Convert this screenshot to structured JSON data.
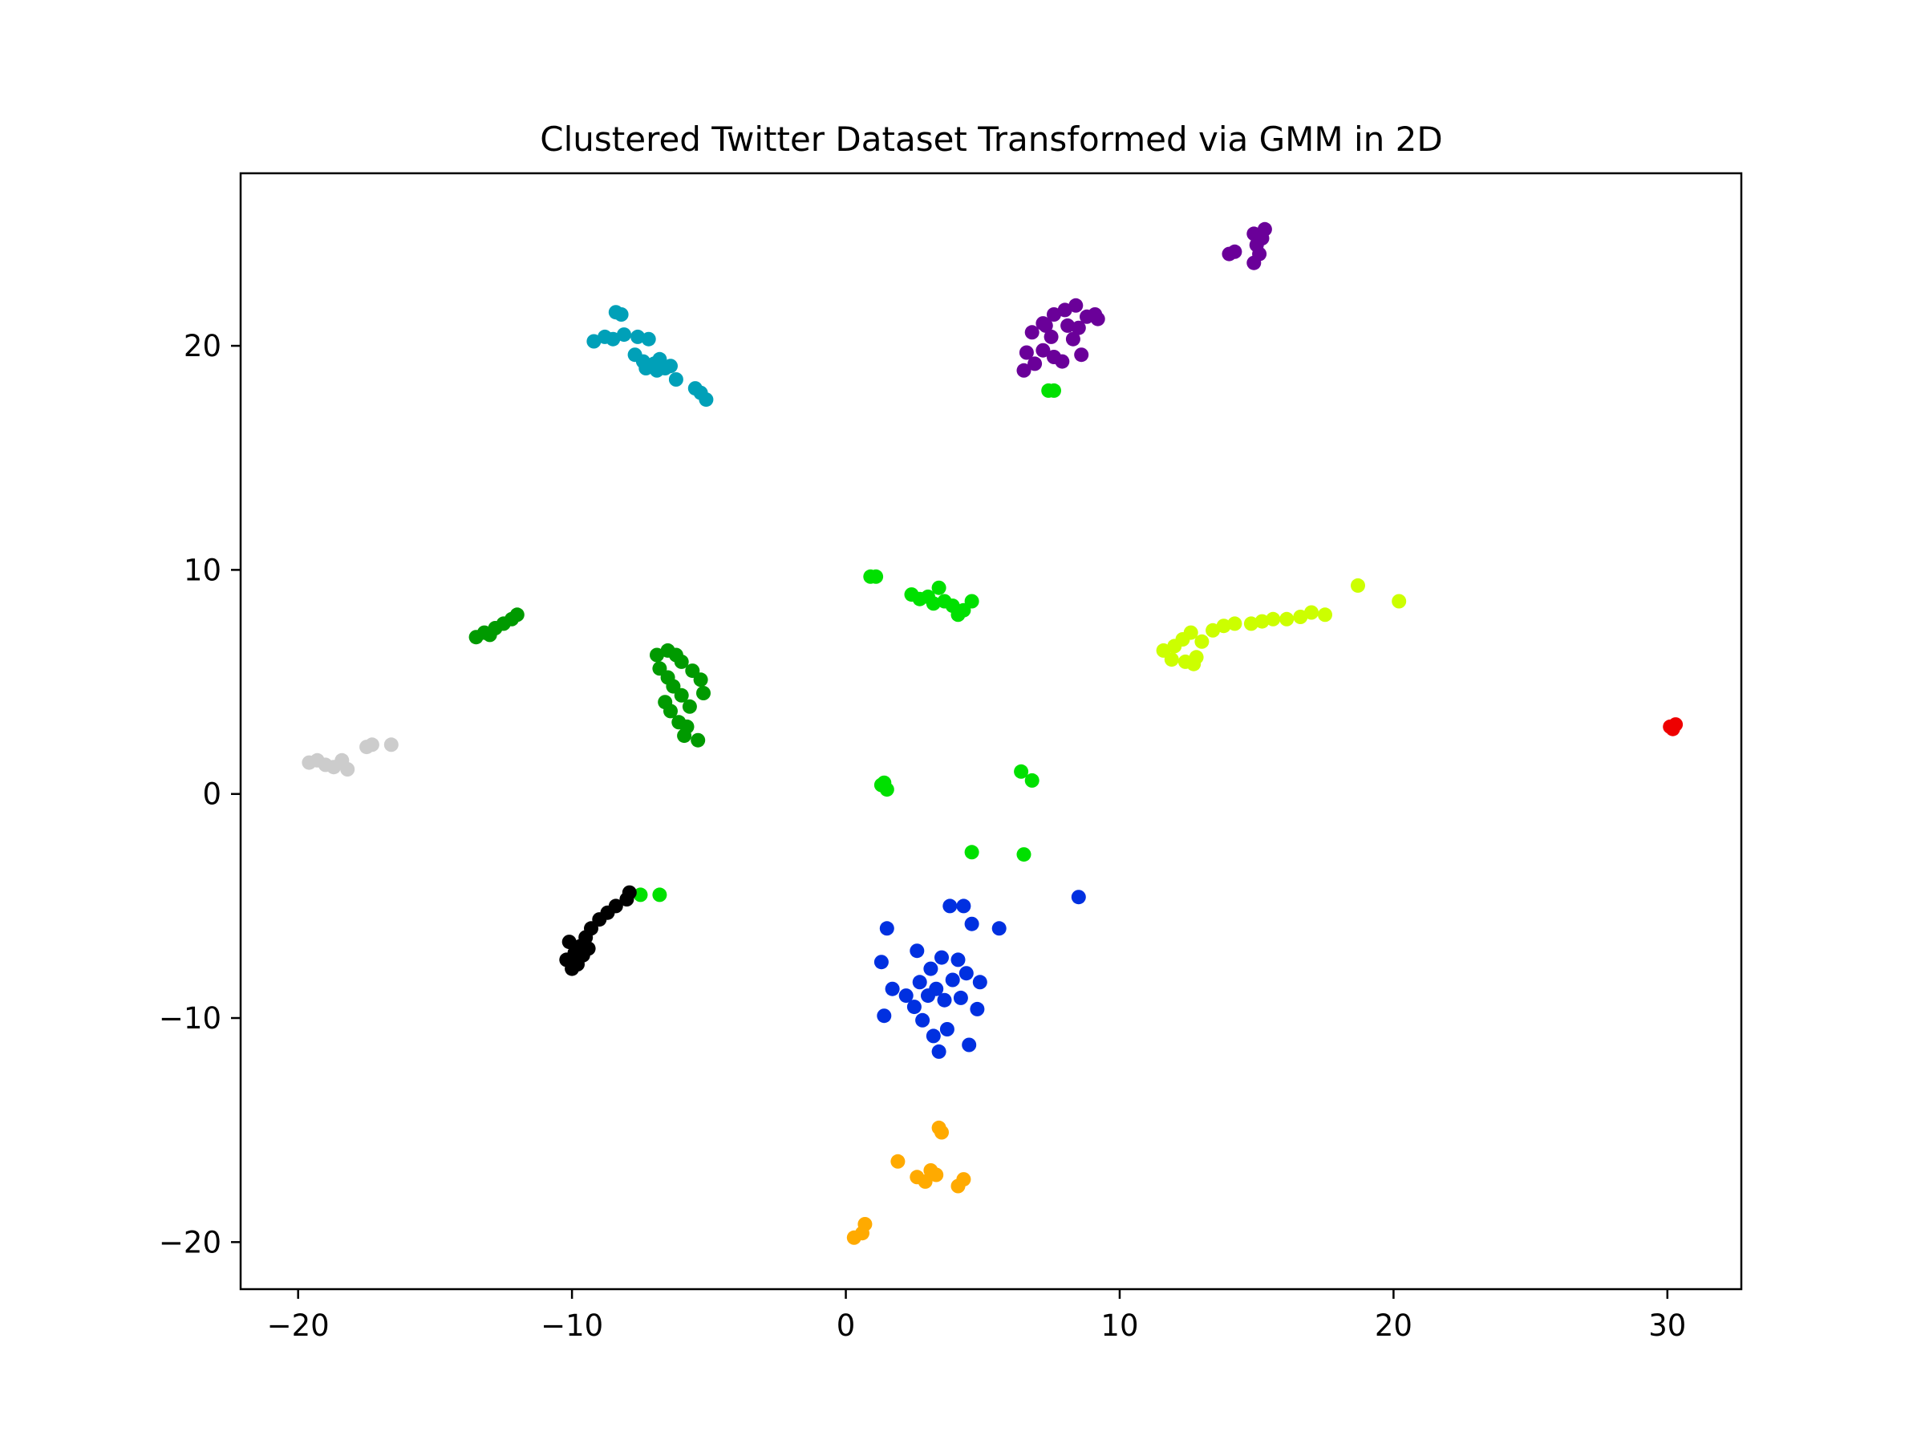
{
  "chart_data": {
    "type": "scatter",
    "title": "Clustered Twitter Dataset Transformed via GMM in 2D",
    "xlabel": "",
    "ylabel": "",
    "xlim": [
      -22.1,
      32.7
    ],
    "ylim": [
      -22.1,
      27.7
    ],
    "x_ticks": [
      -20,
      -10,
      0,
      10,
      20,
      30
    ],
    "y_ticks": [
      -20,
      -10,
      0,
      10,
      20
    ],
    "x_tick_labels": [
      "−20",
      "−10",
      "0",
      "10",
      "20",
      "30"
    ],
    "y_tick_labels": [
      "−20",
      "−10",
      "0",
      "10",
      "20"
    ],
    "grid": false,
    "legend": false,
    "clusters": [
      {
        "color": "#00a0b8",
        "points": [
          [
            -9.2,
            20.2
          ],
          [
            -8.8,
            20.4
          ],
          [
            -8.5,
            20.3
          ],
          [
            -8.1,
            20.5
          ],
          [
            -7.6,
            20.4
          ],
          [
            -7.2,
            20.3
          ],
          [
            -8.4,
            21.5
          ],
          [
            -8.2,
            21.4
          ],
          [
            -7.7,
            19.6
          ],
          [
            -7.4,
            19.3
          ],
          [
            -7.0,
            19.2
          ],
          [
            -6.6,
            19.0
          ],
          [
            -7.3,
            19.0
          ],
          [
            -6.8,
            19.4
          ],
          [
            -6.4,
            19.1
          ],
          [
            -6.9,
            18.9
          ],
          [
            -6.2,
            18.5
          ],
          [
            -5.5,
            18.1
          ],
          [
            -5.3,
            17.9
          ],
          [
            -5.1,
            17.6
          ]
        ]
      },
      {
        "color": "#6a0099",
        "points": [
          [
            6.8,
            20.6
          ],
          [
            7.2,
            21.0
          ],
          [
            7.6,
            21.4
          ],
          [
            8.0,
            21.6
          ],
          [
            8.4,
            21.8
          ],
          [
            8.8,
            21.3
          ],
          [
            9.2,
            21.2
          ],
          [
            8.1,
            20.9
          ],
          [
            7.5,
            20.4
          ],
          [
            7.2,
            19.8
          ],
          [
            7.6,
            19.5
          ],
          [
            6.9,
            19.2
          ],
          [
            6.5,
            18.9
          ],
          [
            6.6,
            19.7
          ],
          [
            8.5,
            20.8
          ],
          [
            8.3,
            20.3
          ],
          [
            9.1,
            21.4
          ],
          [
            8.6,
            19.6
          ],
          [
            7.9,
            19.3
          ],
          [
            7.3,
            20.9
          ],
          [
            14.9,
            25.0
          ],
          [
            15.2,
            24.8
          ],
          [
            15.0,
            24.5
          ],
          [
            15.3,
            25.2
          ],
          [
            14.2,
            24.2
          ],
          [
            14.0,
            24.1
          ],
          [
            14.9,
            23.7
          ],
          [
            15.1,
            24.1
          ]
        ]
      },
      {
        "color": "#00e000",
        "points": [
          [
            0.9,
            9.7
          ],
          [
            1.1,
            9.7
          ],
          [
            2.4,
            8.9
          ],
          [
            2.7,
            8.7
          ],
          [
            3.0,
            8.8
          ],
          [
            3.4,
            9.2
          ],
          [
            3.6,
            8.6
          ],
          [
            3.9,
            8.4
          ],
          [
            4.1,
            8.0
          ],
          [
            4.3,
            8.2
          ],
          [
            4.6,
            8.6
          ],
          [
            3.2,
            8.5
          ],
          [
            7.4,
            18.0
          ],
          [
            7.6,
            18.0
          ],
          [
            1.3,
            0.4
          ],
          [
            1.5,
            0.2
          ],
          [
            1.4,
            0.5
          ],
          [
            6.4,
            1.0
          ],
          [
            6.8,
            0.6
          ],
          [
            4.6,
            -2.6
          ],
          [
            6.5,
            -2.7
          ],
          [
            -7.5,
            -4.5
          ],
          [
            -6.8,
            -4.5
          ]
        ]
      },
      {
        "color": "#009a00",
        "points": [
          [
            -13.5,
            7.0
          ],
          [
            -13.2,
            7.2
          ],
          [
            -12.8,
            7.4
          ],
          [
            -12.5,
            7.6
          ],
          [
            -12.2,
            7.8
          ],
          [
            -12.0,
            8.0
          ],
          [
            -13.0,
            7.1
          ],
          [
            -6.9,
            6.2
          ],
          [
            -6.5,
            6.4
          ],
          [
            -6.2,
            6.2
          ],
          [
            -6.0,
            5.9
          ],
          [
            -5.6,
            5.5
          ],
          [
            -5.3,
            5.1
          ],
          [
            -5.2,
            4.5
          ],
          [
            -6.8,
            5.6
          ],
          [
            -6.5,
            5.2
          ],
          [
            -6.3,
            4.8
          ],
          [
            -6.0,
            4.4
          ],
          [
            -5.7,
            3.9
          ],
          [
            -6.1,
            3.2
          ],
          [
            -6.4,
            3.7
          ],
          [
            -6.6,
            4.1
          ],
          [
            -5.8,
            3.0
          ],
          [
            -5.9,
            2.6
          ],
          [
            -5.4,
            2.4
          ]
        ]
      },
      {
        "color": "#ccff00",
        "points": [
          [
            11.6,
            6.4
          ],
          [
            12.0,
            6.6
          ],
          [
            12.3,
            6.9
          ],
          [
            12.6,
            7.2
          ],
          [
            12.8,
            6.1
          ],
          [
            13.0,
            6.8
          ],
          [
            13.4,
            7.3
          ],
          [
            13.8,
            7.5
          ],
          [
            14.2,
            7.6
          ],
          [
            14.8,
            7.6
          ],
          [
            15.2,
            7.7
          ],
          [
            15.6,
            7.8
          ],
          [
            16.1,
            7.8
          ],
          [
            16.6,
            7.9
          ],
          [
            17.0,
            8.1
          ],
          [
            17.5,
            8.0
          ],
          [
            12.4,
            5.9
          ],
          [
            11.9,
            6.0
          ],
          [
            12.7,
            5.8
          ],
          [
            18.7,
            9.3
          ],
          [
            20.2,
            8.6
          ]
        ]
      },
      {
        "color": "#cccccc",
        "points": [
          [
            -19.6,
            1.4
          ],
          [
            -19.3,
            1.5
          ],
          [
            -19.0,
            1.3
          ],
          [
            -18.7,
            1.2
          ],
          [
            -18.4,
            1.5
          ],
          [
            -18.2,
            1.1
          ],
          [
            -17.5,
            2.1
          ],
          [
            -17.3,
            2.2
          ],
          [
            -16.6,
            2.2
          ]
        ]
      },
      {
        "color": "#ee0000",
        "points": [
          [
            30.1,
            3.0
          ],
          [
            30.3,
            3.1
          ],
          [
            30.2,
            2.9
          ]
        ]
      },
      {
        "color": "#000000",
        "points": [
          [
            -10.2,
            -7.4
          ],
          [
            -9.9,
            -7.1
          ],
          [
            -9.7,
            -6.8
          ],
          [
            -9.5,
            -6.4
          ],
          [
            -9.3,
            -6.0
          ],
          [
            -9.0,
            -5.6
          ],
          [
            -8.7,
            -5.3
          ],
          [
            -8.4,
            -5.0
          ],
          [
            -8.0,
            -4.7
          ],
          [
            -7.9,
            -4.4
          ],
          [
            -10.0,
            -7.8
          ],
          [
            -9.8,
            -7.6
          ],
          [
            -10.1,
            -6.6
          ],
          [
            -9.6,
            -7.2
          ],
          [
            -9.4,
            -6.9
          ]
        ]
      },
      {
        "color": "#0030e0",
        "points": [
          [
            3.3,
            -8.7
          ],
          [
            3.0,
            -9.0
          ],
          [
            3.6,
            -9.2
          ],
          [
            2.7,
            -8.4
          ],
          [
            3.9,
            -8.3
          ],
          [
            2.5,
            -9.5
          ],
          [
            4.2,
            -9.1
          ],
          [
            3.1,
            -7.8
          ],
          [
            3.5,
            -7.3
          ],
          [
            2.8,
            -10.1
          ],
          [
            3.7,
            -10.5
          ],
          [
            4.4,
            -8.0
          ],
          [
            2.2,
            -9.0
          ],
          [
            4.8,
            -9.6
          ],
          [
            1.7,
            -8.7
          ],
          [
            1.3,
            -7.5
          ],
          [
            1.5,
            -6.0
          ],
          [
            3.8,
            -5.0
          ],
          [
            4.3,
            -5.0
          ],
          [
            4.6,
            -5.8
          ],
          [
            5.6,
            -6.0
          ],
          [
            3.4,
            -11.5
          ],
          [
            4.5,
            -11.2
          ],
          [
            1.4,
            -9.9
          ],
          [
            4.9,
            -8.4
          ],
          [
            2.6,
            -7.0
          ],
          [
            4.1,
            -7.4
          ],
          [
            3.2,
            -10.8
          ],
          [
            8.5,
            -4.6
          ]
        ]
      },
      {
        "color": "#ffaa00",
        "points": [
          [
            3.4,
            -14.9
          ],
          [
            3.5,
            -15.1
          ],
          [
            1.9,
            -16.4
          ],
          [
            2.6,
            -17.1
          ],
          [
            2.9,
            -17.3
          ],
          [
            3.1,
            -16.8
          ],
          [
            3.3,
            -17.0
          ],
          [
            4.1,
            -17.5
          ],
          [
            4.3,
            -17.2
          ],
          [
            0.3,
            -19.8
          ],
          [
            0.6,
            -19.6
          ],
          [
            0.7,
            -19.2
          ]
        ]
      }
    ]
  }
}
